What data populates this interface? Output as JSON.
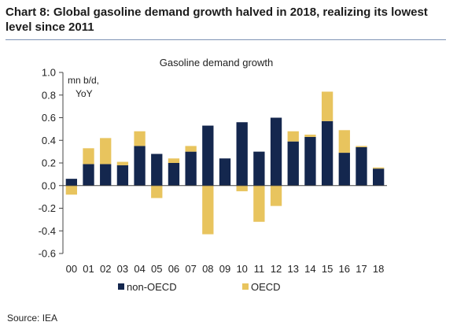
{
  "header": {
    "title": "Chart 8: Global gasoline demand growth halved in 2018, realizing its lowest level since 2011"
  },
  "footer": {
    "source": "Source: IEA"
  },
  "colors": {
    "non_oecd": "#14274e",
    "oecd": "#e8c45e",
    "rule": "#7f93b5"
  },
  "chart_data": {
    "type": "bar",
    "stacked": true,
    "title": "Gasoline demand growth",
    "unit_label_line1": "mn b/d,",
    "unit_label_line2": "YoY",
    "categories": [
      "00",
      "01",
      "02",
      "03",
      "04",
      "05",
      "06",
      "07",
      "08",
      "09",
      "10",
      "11",
      "12",
      "13",
      "14",
      "15",
      "16",
      "17",
      "18"
    ],
    "series": [
      {
        "name": "non-OECD",
        "color": "#14274e",
        "values": [
          0.06,
          0.19,
          0.19,
          0.18,
          0.35,
          0.28,
          0.2,
          0.3,
          0.53,
          0.24,
          0.56,
          0.3,
          0.6,
          0.39,
          0.43,
          0.57,
          0.29,
          0.34,
          0.15
        ]
      },
      {
        "name": "OECD",
        "color": "#e8c45e",
        "values": [
          -0.08,
          0.14,
          0.23,
          0.03,
          0.13,
          -0.11,
          0.04,
          0.05,
          -0.43,
          0.0,
          -0.05,
          -0.32,
          -0.18,
          0.09,
          0.02,
          0.26,
          0.2,
          0.01,
          0.01
        ]
      }
    ],
    "ylim": [
      -0.6,
      1.0
    ],
    "yticks": [
      "1.0",
      "0.8",
      "0.6",
      "0.4",
      "0.2",
      "0.0",
      "-0.2",
      "-0.4",
      "-0.6"
    ],
    "ytick_values": [
      1.0,
      0.8,
      0.6,
      0.4,
      0.2,
      0.0,
      -0.2,
      -0.4,
      -0.6
    ],
    "legend_position": "bottom",
    "grid": false
  }
}
